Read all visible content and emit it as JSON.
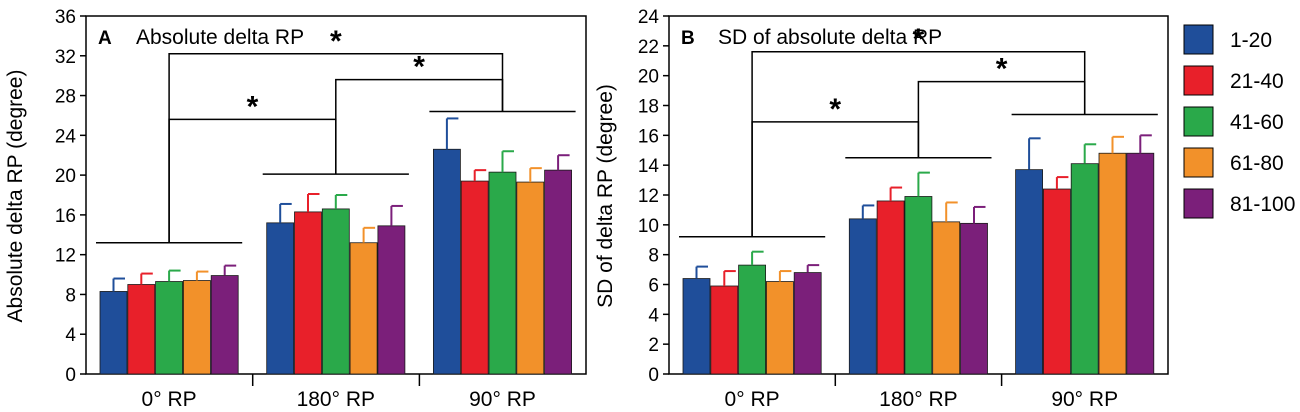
{
  "chart_data": [
    {
      "type": "bar",
      "panel_letter": "A",
      "title": "Absolute delta RP",
      "xlabel": "",
      "ylabel": "Absolute delta RP (degree)",
      "ylim": [
        0,
        36
      ],
      "yticks": [
        0,
        4,
        8,
        12,
        16,
        20,
        24,
        28,
        32,
        36
      ],
      "categories": [
        "0° RP",
        "180° RP",
        "90° RP"
      ],
      "series": [
        {
          "name": "1-20",
          "values": [
            8.3,
            15.2,
            22.6
          ],
          "errors": [
            1.3,
            1.9,
            3.1
          ]
        },
        {
          "name": "21-40",
          "values": [
            9.0,
            16.3,
            19.4
          ],
          "errors": [
            1.1,
            1.8,
            1.1
          ]
        },
        {
          "name": "41-60",
          "values": [
            9.3,
            16.6,
            20.3
          ],
          "errors": [
            1.1,
            1.4,
            2.1
          ]
        },
        {
          "name": "61-80",
          "values": [
            9.4,
            13.2,
            19.3
          ],
          "errors": [
            0.9,
            1.5,
            1.4
          ]
        },
        {
          "name": "81-100",
          "values": [
            9.9,
            14.9,
            20.5
          ],
          "errors": [
            1.0,
            2.0,
            1.5
          ]
        }
      ],
      "group_lines": [
        13.2,
        20.1,
        26.4
      ],
      "significance": [
        {
          "from": 0,
          "to": 1,
          "bracket_y": 25.6,
          "label": "*"
        },
        {
          "from": 1,
          "to": 2,
          "bracket_y": 29.6,
          "label": "*"
        },
        {
          "from": 0,
          "to": 2,
          "bracket_y": 32.2,
          "label": "*"
        }
      ]
    },
    {
      "type": "bar",
      "panel_letter": "B",
      "title": "SD of absolute delta RP",
      "xlabel": "",
      "ylabel": "SD of delta RP (degree)",
      "ylim": [
        0,
        24
      ],
      "yticks": [
        0,
        2,
        4,
        6,
        8,
        10,
        12,
        14,
        16,
        18,
        20,
        22,
        24
      ],
      "categories": [
        "0° RP",
        "180° RP",
        "90° RP"
      ],
      "series": [
        {
          "name": "1-20",
          "values": [
            6.4,
            10.4,
            13.7
          ],
          "errors": [
            0.8,
            0.9,
            2.1
          ]
        },
        {
          "name": "21-40",
          "values": [
            5.9,
            11.6,
            12.4
          ],
          "errors": [
            1.0,
            0.9,
            0.8
          ]
        },
        {
          "name": "41-60",
          "values": [
            7.3,
            11.9,
            14.1
          ],
          "errors": [
            0.9,
            1.6,
            1.3
          ]
        },
        {
          "name": "61-80",
          "values": [
            6.2,
            10.2,
            14.8
          ],
          "errors": [
            0.7,
            1.3,
            1.1
          ]
        },
        {
          "name": "81-100",
          "values": [
            6.8,
            10.1,
            14.8
          ],
          "errors": [
            0.5,
            1.1,
            1.2
          ]
        }
      ],
      "group_lines": [
        9.2,
        14.5,
        17.4
      ],
      "significance": [
        {
          "from": 0,
          "to": 1,
          "bracket_y": 16.9,
          "label": "*"
        },
        {
          "from": 1,
          "to": 2,
          "bracket_y": 19.6,
          "label": "*"
        },
        {
          "from": 0,
          "to": 2,
          "bracket_y": 21.6,
          "label": "*"
        }
      ]
    }
  ],
  "legend": {
    "items": [
      {
        "label": "1-20",
        "color": "#1f4e9a"
      },
      {
        "label": "21-40",
        "color": "#e8202a"
      },
      {
        "label": "41-60",
        "color": "#2aa94a"
      },
      {
        "label": "61-80",
        "color": "#f2912a"
      },
      {
        "label": "81-100",
        "color": "#7b1f7a"
      }
    ]
  }
}
